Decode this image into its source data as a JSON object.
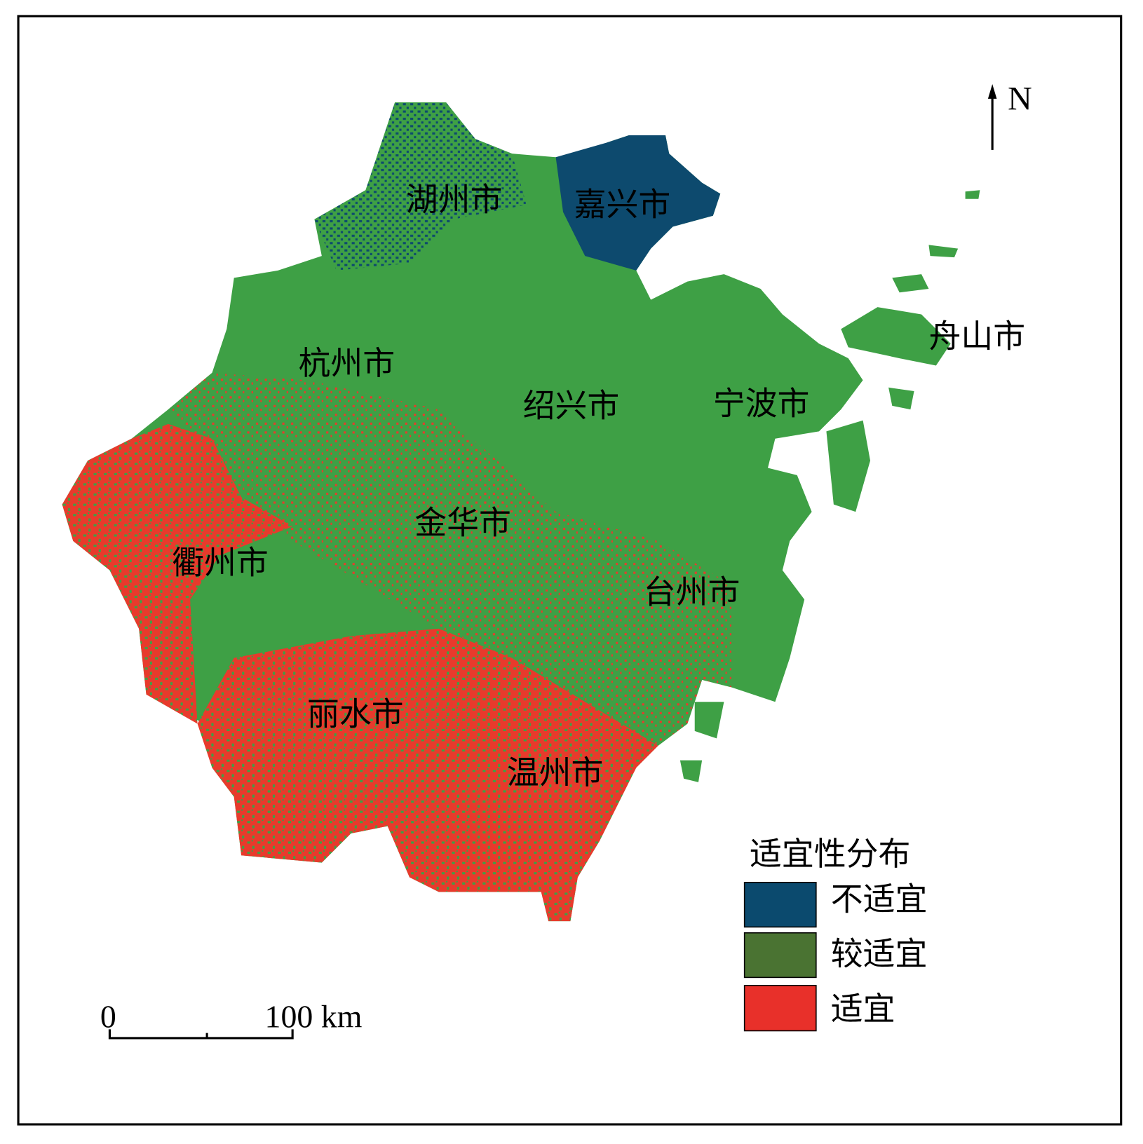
{
  "north_arrow": {
    "label": "N"
  },
  "labels": [
    {
      "text": "湖州市"
    },
    {
      "text": "嘉兴市"
    },
    {
      "text": "舟山市"
    },
    {
      "text": "杭州市"
    },
    {
      "text": "绍兴市"
    },
    {
      "text": "宁波市"
    },
    {
      "text": "金华市"
    },
    {
      "text": "衢州市"
    },
    {
      "text": "台州市"
    },
    {
      "text": "丽水市"
    },
    {
      "text": "温州市"
    }
  ],
  "legend": {
    "title": "适宜性分布",
    "items": [
      {
        "label": "不适宜",
        "color": "#0b4a6e"
      },
      {
        "label": "较适宜",
        "color": "#4a7332"
      },
      {
        "label": "适宜",
        "color": "#e8302a"
      }
    ]
  },
  "scale_bar": {
    "labels": [
      "0",
      "100 km"
    ]
  }
}
